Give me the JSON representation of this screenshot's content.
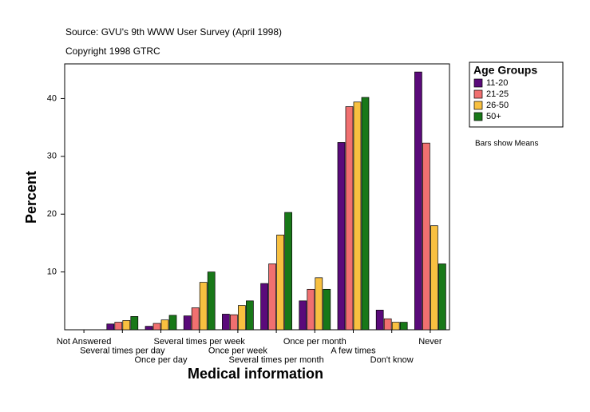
{
  "chart_data": {
    "type": "bar",
    "title": "Source: GVU's 9th WWW User Survey (April 1998)",
    "subtitle": "Copyright 1998 GTRC",
    "note": "Bars show Means",
    "x_label": "Medical information",
    "y_label": "Percent",
    "legend_title": "Age Groups",
    "categories": [
      "Not Answered",
      "Several times per day",
      "Once per day",
      "Several times per week",
      "Once per week",
      "Several times per month",
      "Once per month",
      "A few times",
      "Don't know",
      "Never"
    ],
    "series": [
      {
        "name": "11-20",
        "color": "#5a0a7a",
        "values": [
          0,
          1.0,
          0.6,
          2.4,
          2.7,
          8.0,
          5.0,
          32.4,
          3.4,
          44.6
        ]
      },
      {
        "name": "21-25",
        "color": "#f07070",
        "values": [
          0,
          1.3,
          1.1,
          3.8,
          2.6,
          11.4,
          7.0,
          38.6,
          1.9,
          32.3
        ]
      },
      {
        "name": "26-50",
        "color": "#f8c040",
        "values": [
          0,
          1.6,
          1.7,
          8.2,
          4.2,
          16.4,
          9.0,
          39.4,
          1.3,
          18.0
        ]
      },
      {
        "name": "50+",
        "color": "#187818",
        "values": [
          0,
          2.3,
          2.5,
          10.0,
          5.0,
          20.3,
          7.0,
          40.2,
          1.3,
          11.4
        ]
      }
    ],
    "ylim": [
      0,
      46
    ],
    "yticks": [
      10,
      20,
      30,
      40
    ],
    "legend": "right"
  }
}
